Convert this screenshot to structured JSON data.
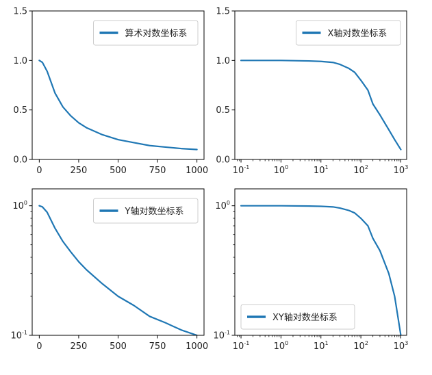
{
  "chart_data": [
    {
      "type": "line",
      "panel": "top-left",
      "x": [
        0,
        20,
        50,
        100,
        150,
        200,
        250,
        300,
        400,
        500,
        600,
        700,
        800,
        900,
        1000
      ],
      "series": [
        {
          "name": "算术对数坐标系",
          "color": "#1f77b4",
          "values": [
            1.0,
            0.98,
            0.89,
            0.67,
            0.53,
            0.44,
            0.37,
            0.32,
            0.25,
            0.2,
            0.17,
            0.14,
            0.125,
            0.11,
            0.1
          ]
        }
      ],
      "xscale": "linear",
      "yscale": "linear",
      "xlim": [
        -45,
        1045
      ],
      "ylim": [
        0,
        1.5
      ],
      "xticks": [
        "0",
        "250",
        "500",
        "750",
        "1000"
      ],
      "yticks": [
        "0.0",
        "0.5",
        "1.0",
        "1.5"
      ],
      "legend_position": "upper right",
      "grid": false
    },
    {
      "type": "line",
      "panel": "top-right",
      "x": [
        0.1,
        1,
        5,
        10,
        20,
        30,
        50,
        70,
        100,
        150,
        200,
        300,
        500,
        700,
        1000
      ],
      "series": [
        {
          "name": "X轴对数坐标系",
          "color": "#1f77b4",
          "values": [
            1.0,
            1.0,
            0.995,
            0.99,
            0.98,
            0.96,
            0.92,
            0.88,
            0.8,
            0.7,
            0.56,
            0.45,
            0.3,
            0.2,
            0.1
          ]
        }
      ],
      "xscale": "log",
      "yscale": "linear",
      "xlim": [
        0.07,
        1400
      ],
      "ylim": [
        0,
        1.5
      ],
      "xticks": [
        "10^-1",
        "10^0",
        "10^1",
        "10^2",
        "10^3"
      ],
      "yticks": [
        "0.0",
        "0.5",
        "1.0",
        "1.5"
      ],
      "legend_position": "upper right",
      "grid": false
    },
    {
      "type": "line",
      "panel": "bottom-left",
      "x": [
        0,
        20,
        50,
        100,
        150,
        200,
        250,
        300,
        400,
        500,
        600,
        700,
        800,
        900,
        1000
      ],
      "series": [
        {
          "name": "Y轴对数坐标系",
          "color": "#1f77b4",
          "values": [
            1.0,
            0.98,
            0.89,
            0.67,
            0.53,
            0.44,
            0.37,
            0.32,
            0.25,
            0.2,
            0.17,
            0.14,
            0.125,
            0.11,
            0.1
          ]
        }
      ],
      "xscale": "linear",
      "yscale": "log",
      "xlim": [
        -45,
        1045
      ],
      "ylim": [
        0.1,
        1.35
      ],
      "xticks": [
        "0",
        "250",
        "500",
        "750",
        "1000"
      ],
      "yticks": [
        "10^-1",
        "10^0"
      ],
      "legend_position": "upper right",
      "grid": false
    },
    {
      "type": "line",
      "panel": "bottom-right",
      "x": [
        0.1,
        1,
        5,
        10,
        20,
        30,
        50,
        70,
        100,
        150,
        200,
        300,
        500,
        700,
        1000
      ],
      "series": [
        {
          "name": "XY轴对数坐标系",
          "color": "#1f77b4",
          "values": [
            1.0,
            1.0,
            0.995,
            0.99,
            0.98,
            0.96,
            0.92,
            0.88,
            0.8,
            0.7,
            0.56,
            0.45,
            0.3,
            0.2,
            0.1
          ]
        }
      ],
      "xscale": "log",
      "yscale": "log",
      "xlim": [
        0.07,
        1400
      ],
      "ylim": [
        0.1,
        1.35
      ],
      "xticks": [
        "10^-1",
        "10^0",
        "10^1",
        "10^2",
        "10^3"
      ],
      "yticks": [
        "10^-1",
        "10^0"
      ],
      "legend_position": "lower left",
      "grid": false
    }
  ]
}
